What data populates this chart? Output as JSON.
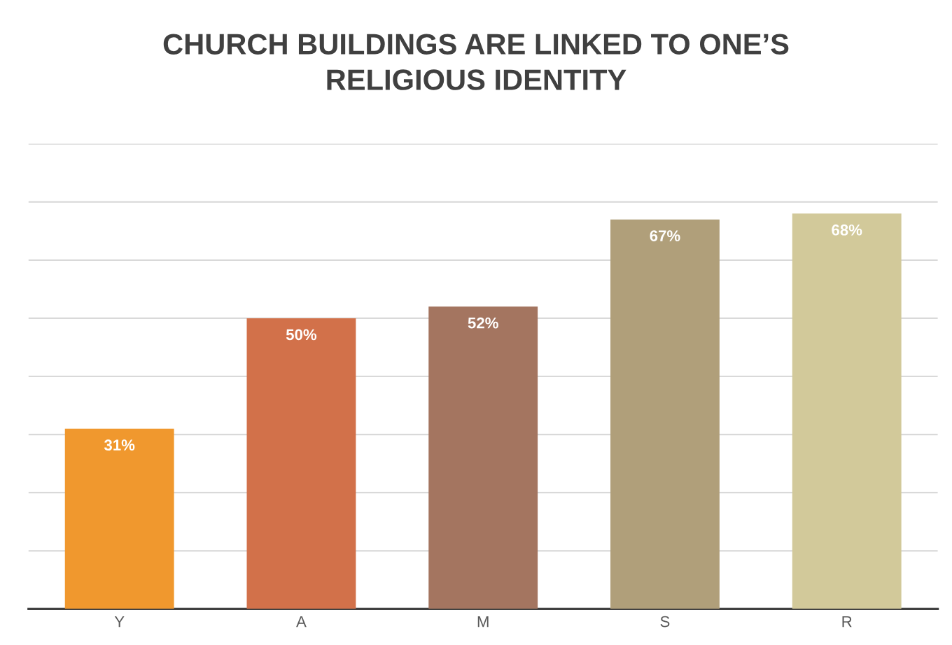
{
  "chart_data": {
    "type": "bar",
    "title": "CHURCH BUILDINGS ARE LINKED TO ONE’S\nRELIGIOUS IDENTITY",
    "categories": [
      "Y",
      "A",
      "M",
      "S",
      "R"
    ],
    "values": [
      31,
      50,
      52,
      67,
      68
    ],
    "colors": [
      "#f0982e",
      "#d2714a",
      "#a47560",
      "#b09f7a",
      "#d2c99a"
    ],
    "value_labels": [
      "31%",
      "50%",
      "52%",
      "67%",
      "68%"
    ],
    "ylim": [
      0,
      80
    ],
    "yticks": [
      {
        "value": 0,
        "label": null
      },
      {
        "value": 10,
        "label": null
      },
      {
        "value": 20,
        "label": null
      },
      {
        "value": 30,
        "label": null
      },
      {
        "value": 40,
        "label": null
      },
      {
        "value": 50,
        "label": null
      },
      {
        "value": 60,
        "label": null
      },
      {
        "value": 70,
        "label": null
      },
      {
        "value": 80,
        "label": null
      }
    ],
    "grid": "y",
    "tick_labels": "x"
  }
}
